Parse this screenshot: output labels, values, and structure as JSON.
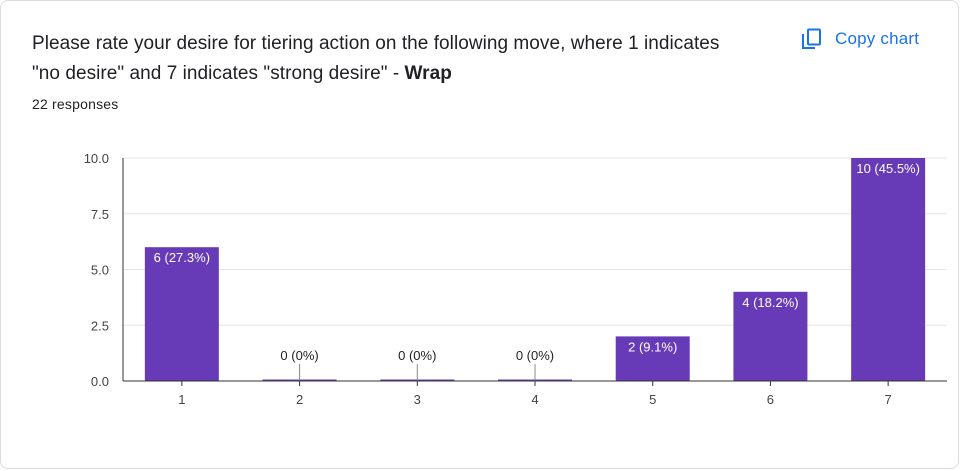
{
  "question": {
    "title_main": "Please rate your desire for tiering action on the following move, where 1 indicates \"no desire\" and 7 indicates \"strong desire\" - ",
    "title_bold": "Wrap",
    "responses": "22 responses"
  },
  "toolbar": {
    "copy_label": "Copy chart",
    "copy_icon": "copy-icon"
  },
  "colors": {
    "bar": "#673ab7",
    "label_inside": "#ffffff",
    "label_outside": "#222222",
    "accent": "#1a73e8"
  },
  "chart_data": {
    "type": "bar",
    "categories": [
      "1",
      "2",
      "3",
      "4",
      "5",
      "6",
      "7"
    ],
    "values": [
      6,
      0,
      0,
      0,
      2,
      4,
      10
    ],
    "labels": [
      "6 (27.3%)",
      "0 (0%)",
      "0 (0%)",
      "0 (0%)",
      "2 (9.1%)",
      "4 (18.2%)",
      "10 (45.5%)"
    ],
    "yticks": [
      "0.0",
      "2.5",
      "5.0",
      "7.5",
      "10.0"
    ],
    "ylim": [
      0,
      10
    ],
    "grid": true,
    "xlabel": "",
    "ylabel": ""
  }
}
